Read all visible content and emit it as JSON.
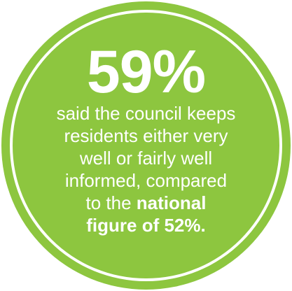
{
  "colors": {
    "accent": "#8dc63f",
    "text": "#ffffff",
    "ring": "#ffffff"
  },
  "badge": {
    "stat": "59%",
    "text_lines": [
      "said the council keeps",
      "residents either very",
      "well or fairly well",
      "informed, compared"
    ],
    "line5_prefix": "to the ",
    "line5_bold": "national",
    "line6_bold": "figure of 52%."
  }
}
